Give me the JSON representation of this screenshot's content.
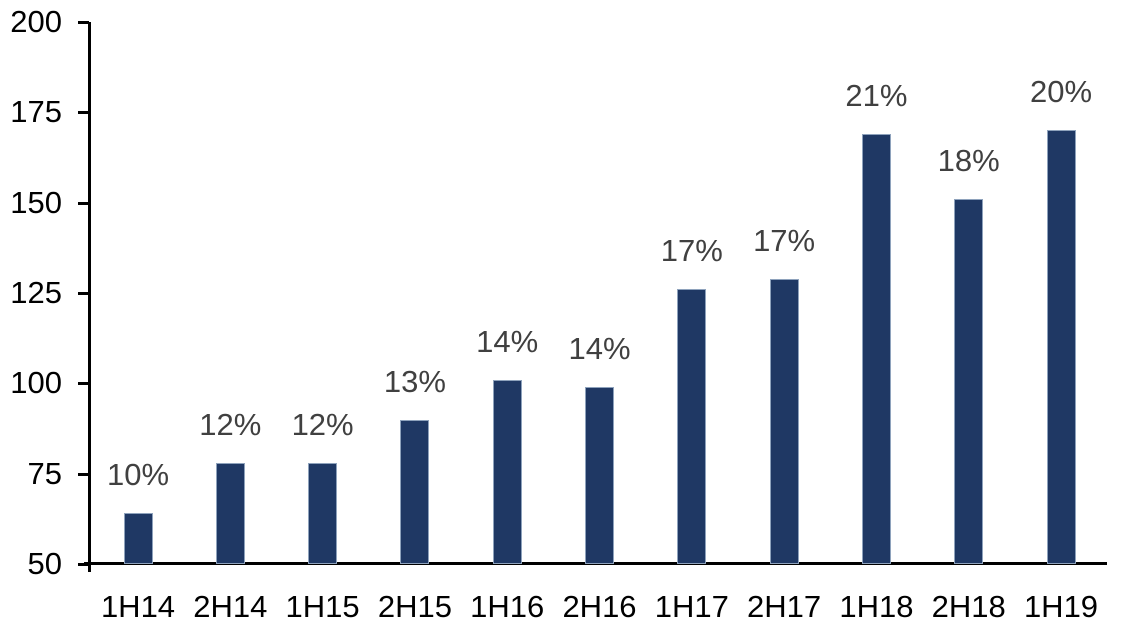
{
  "chart_data": {
    "type": "bar",
    "title": "",
    "xlabel": "",
    "ylabel": "",
    "categories": [
      "1H14",
      "2H14",
      "1H15",
      "2H15",
      "1H16",
      "2H16",
      "1H17",
      "2H17",
      "1H18",
      "2H18",
      "1H19"
    ],
    "values": [
      64,
      78,
      78,
      90,
      101,
      99,
      126,
      129,
      169,
      151,
      170
    ],
    "bar_labels": [
      "10%",
      "12%",
      "12%",
      "13%",
      "14%",
      "14%",
      "17%",
      "17%",
      "21%",
      "18%",
      "20%"
    ],
    "ylim": [
      50,
      200
    ],
    "yticks": [
      50,
      75,
      100,
      125,
      150,
      175,
      200
    ],
    "grid": false,
    "legend": null,
    "colors": {
      "bar_fill": "#1f3864",
      "bar_border": "#8ea2bc",
      "value_label": "#404040",
      "axis": "#000000",
      "background": "#ffffff"
    }
  }
}
